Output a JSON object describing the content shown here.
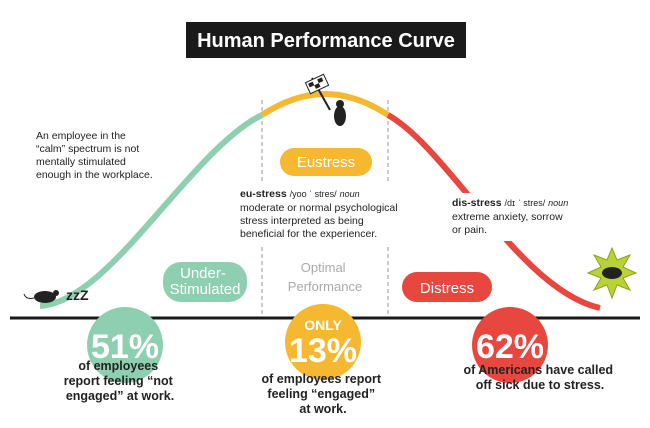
{
  "header": {
    "title": "Human Performance Curve"
  },
  "calm_note": [
    "An employee in the",
    "“calm” spectrum is not",
    "mentally stimulated",
    "enough in the workplace."
  ],
  "sleep_sound": "zzZ",
  "eustress": {
    "label": "Eustress",
    "definition": {
      "term": "eu-stress",
      "pronunciation": "/yoo ˈ stres/",
      "part": "noun",
      "lines": [
        "moderate or normal psychological",
        "stress interpreted as being",
        "beneficial for the experiencer."
      ]
    }
  },
  "distress_definition": {
    "term": "dis-stress",
    "pronunciation": "/dɪ ˈ stres/",
    "part": "noun",
    "lines": [
      "extreme anxiety, sorrow",
      "or pain."
    ]
  },
  "zones": [
    {
      "label": [
        "Under-",
        "Stimulated"
      ]
    },
    {
      "label": [
        "Optimal",
        "Performance"
      ]
    },
    {
      "label": [
        "Distress"
      ]
    }
  ],
  "stats": [
    {
      "value": "51%",
      "caption": [
        "of employees",
        "report feeling “not",
        "engaged” at work."
      ]
    },
    {
      "prefix": "ONLY",
      "value": "13%",
      "caption": [
        "of employees report",
        "feeling “engaged”",
        "at work."
      ]
    },
    {
      "value": "62%",
      "caption": [
        "of Americans have called",
        "off sick due to stress."
      ]
    }
  ]
}
